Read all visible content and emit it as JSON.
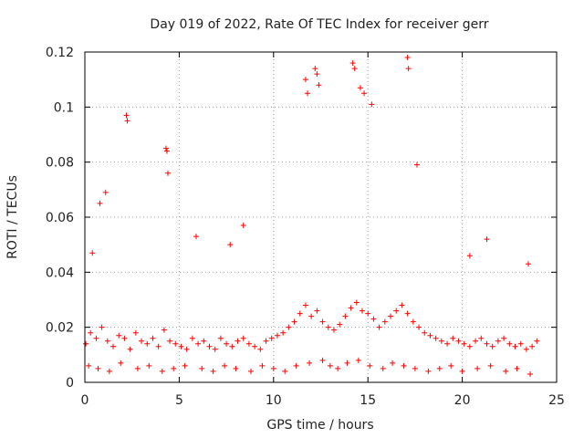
{
  "chart_data": {
    "type": "scatter",
    "title": "Day 019 of 2022, Rate Of TEC Index for receiver gerr",
    "xlabel": "GPS time / hours",
    "ylabel": "ROTI / TECUs",
    "xlim": [
      0,
      25
    ],
    "ylim": [
      0,
      0.12
    ],
    "xticks": [
      0,
      5,
      10,
      15,
      20,
      25
    ],
    "xtick_labels": [
      "0",
      "5",
      "10",
      "15",
      "20",
      "25"
    ],
    "yticks": [
      0,
      0.02,
      0.04,
      0.06,
      0.08,
      0.1,
      0.12
    ],
    "ytick_labels": [
      "0",
      "0.02",
      "0.04",
      "0.06",
      "0.08",
      "0.1",
      "0.12"
    ],
    "grid": true,
    "marker": "plus",
    "series": [
      {
        "name": "ROTI",
        "color": "#ff0000",
        "x": [
          0.05,
          0.3,
          0.6,
          0.9,
          1.2,
          1.5,
          1.8,
          2.1,
          2.4,
          2.7,
          3.0,
          3.3,
          3.6,
          3.9,
          4.2,
          4.5,
          4.8,
          5.1,
          5.4,
          5.7,
          6.0,
          6.3,
          6.6,
          6.9,
          7.2,
          7.5,
          7.8,
          8.1,
          8.4,
          8.7,
          9.0,
          9.3,
          9.6,
          9.9,
          10.2,
          10.5,
          10.8,
          11.1,
          11.4,
          11.7,
          12.0,
          12.3,
          12.6,
          12.9,
          13.2,
          13.5,
          13.8,
          14.1,
          14.4,
          14.7,
          15.0,
          15.3,
          15.6,
          15.9,
          16.2,
          16.5,
          16.8,
          17.1,
          17.4,
          17.7,
          18.0,
          18.3,
          18.6,
          18.9,
          19.2,
          19.5,
          19.8,
          20.1,
          20.4,
          20.7,
          21.0,
          21.3,
          21.6,
          21.9,
          22.2,
          22.5,
          22.8,
          23.1,
          23.4,
          23.7,
          23.95,
          0.4,
          0.8,
          1.1,
          2.2,
          2.25,
          4.3,
          4.35,
          4.4,
          5.9,
          7.7,
          8.4,
          11.7,
          11.8,
          12.2,
          12.3,
          12.4,
          14.2,
          14.3,
          14.6,
          14.8,
          15.2,
          17.1,
          17.15,
          17.6,
          20.4,
          21.3,
          23.5,
          0.2,
          0.7,
          1.3,
          1.9,
          2.8,
          3.4,
          4.1,
          4.7,
          5.3,
          6.2,
          6.8,
          7.4,
          8.0,
          8.8,
          9.4,
          10.0,
          10.6,
          11.2,
          11.9,
          12.6,
          13.0,
          13.4,
          13.9,
          14.5,
          15.1,
          15.8,
          16.3,
          16.9,
          17.5,
          18.2,
          18.8,
          19.4,
          20.0,
          20.8,
          21.5,
          22.3,
          22.9,
          23.6
        ],
        "y": [
          0.014,
          0.018,
          0.016,
          0.02,
          0.015,
          0.013,
          0.017,
          0.016,
          0.012,
          0.018,
          0.015,
          0.014,
          0.016,
          0.013,
          0.019,
          0.015,
          0.014,
          0.013,
          0.012,
          0.016,
          0.014,
          0.015,
          0.013,
          0.012,
          0.016,
          0.014,
          0.013,
          0.015,
          0.016,
          0.014,
          0.013,
          0.012,
          0.015,
          0.016,
          0.017,
          0.018,
          0.02,
          0.022,
          0.025,
          0.028,
          0.024,
          0.026,
          0.022,
          0.02,
          0.019,
          0.021,
          0.024,
          0.027,
          0.029,
          0.026,
          0.025,
          0.023,
          0.02,
          0.022,
          0.024,
          0.026,
          0.028,
          0.025,
          0.022,
          0.02,
          0.018,
          0.017,
          0.016,
          0.015,
          0.014,
          0.016,
          0.015,
          0.014,
          0.013,
          0.015,
          0.016,
          0.014,
          0.013,
          0.015,
          0.016,
          0.014,
          0.013,
          0.014,
          0.012,
          0.013,
          0.015,
          0.047,
          0.065,
          0.069,
          0.097,
          0.095,
          0.085,
          0.084,
          0.076,
          0.053,
          0.05,
          0.057,
          0.11,
          0.105,
          0.114,
          0.112,
          0.108,
          0.116,
          0.114,
          0.107,
          0.105,
          0.101,
          0.118,
          0.114,
          0.079,
          0.046,
          0.052,
          0.043,
          0.006,
          0.005,
          0.004,
          0.007,
          0.005,
          0.006,
          0.004,
          0.005,
          0.006,
          0.005,
          0.004,
          0.006,
          0.005,
          0.004,
          0.006,
          0.005,
          0.004,
          0.006,
          0.007,
          0.008,
          0.006,
          0.005,
          0.007,
          0.008,
          0.006,
          0.005,
          0.007,
          0.006,
          0.005,
          0.004,
          0.005,
          0.006,
          0.004,
          0.005,
          0.006,
          0.004,
          0.005,
          0.003
        ]
      }
    ]
  }
}
